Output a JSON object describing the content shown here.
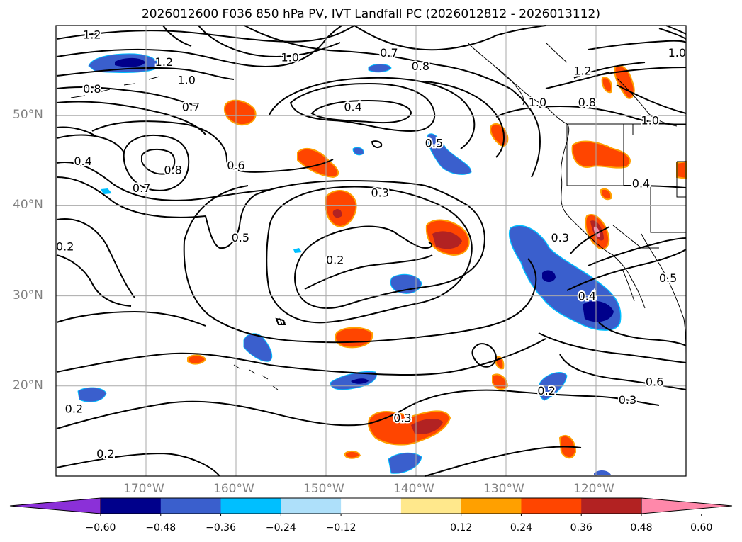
{
  "title": "2026012600 F036 850 hPa PV, IVT Landfall PC (2026012812 - 2026013112)",
  "map": {
    "lon_range": [
      -180,
      -110
    ],
    "lat_range": [
      10,
      60
    ],
    "lat_labels": [
      {
        "lat": 50,
        "label": "50°N"
      },
      {
        "lat": 40,
        "label": "40°N"
      },
      {
        "lat": 30,
        "label": "30°N"
      },
      {
        "lat": 20,
        "label": "20°N"
      }
    ],
    "lon_labels": [
      {
        "lon": -170,
        "label": "170°W"
      },
      {
        "lon": -160,
        "label": "160°W"
      },
      {
        "lon": -150,
        "label": "150°W"
      },
      {
        "lon": -140,
        "label": "140°W"
      },
      {
        "lon": -130,
        "label": "130°W"
      },
      {
        "lon": -120,
        "label": "120°W"
      }
    ],
    "grid_color": "#aaaaaa",
    "contour_labels": [
      {
        "text": "1.2",
        "lon": -176,
        "lat": 59
      },
      {
        "text": "1.2",
        "lon": -168,
        "lat": 56
      },
      {
        "text": "1.0",
        "lon": -165.5,
        "lat": 54
      },
      {
        "text": "1.0",
        "lon": -154,
        "lat": 56.5
      },
      {
        "text": "0.8",
        "lon": -176,
        "lat": 53
      },
      {
        "text": "0.7",
        "lon": -165,
        "lat": 51
      },
      {
        "text": "0.7",
        "lon": -143,
        "lat": 57
      },
      {
        "text": "0.8",
        "lon": -139.5,
        "lat": 55.5
      },
      {
        "text": "0.4",
        "lon": -147,
        "lat": 51
      },
      {
        "text": "0.5",
        "lon": -138,
        "lat": 47
      },
      {
        "text": "0.4",
        "lon": -177,
        "lat": 45
      },
      {
        "text": "0.8",
        "lon": -167,
        "lat": 44
      },
      {
        "text": "0.7",
        "lon": -170.5,
        "lat": 42
      },
      {
        "text": "0.6",
        "lon": -160,
        "lat": 44.5
      },
      {
        "text": "0.3",
        "lon": -144,
        "lat": 41.5
      },
      {
        "text": "0.5",
        "lon": -159.5,
        "lat": 36.5
      },
      {
        "text": "0.2",
        "lon": -179,
        "lat": 35.5
      },
      {
        "text": "0.2",
        "lon": -149,
        "lat": 34
      },
      {
        "text": "1.0",
        "lon": -126.5,
        "lat": 51.5
      },
      {
        "text": "0.8",
        "lon": -121,
        "lat": 51.5
      },
      {
        "text": "1.2",
        "lon": -121.5,
        "lat": 55
      },
      {
        "text": "1.0",
        "lon": -114,
        "lat": 49.5
      },
      {
        "text": "1.0",
        "lon": -111,
        "lat": 57
      },
      {
        "text": "0.4",
        "lon": -115,
        "lat": 42.5
      },
      {
        "text": "0.3",
        "lon": -124,
        "lat": 36.5
      },
      {
        "text": "0.4",
        "lon": -121,
        "lat": 30
      },
      {
        "text": "0.5",
        "lon": -112,
        "lat": 32
      },
      {
        "text": "0.6",
        "lon": -113.5,
        "lat": 20.5
      },
      {
        "text": "0.3",
        "lon": -116.5,
        "lat": 18.5
      },
      {
        "text": "0.2",
        "lon": -125.5,
        "lat": 19.5
      },
      {
        "text": "0.3",
        "lon": -141.5,
        "lat": 16.5
      },
      {
        "text": "0.2",
        "lon": -178,
        "lat": 17.5
      },
      {
        "text": "0.2",
        "lon": -174.5,
        "lat": 12.5
      }
    ],
    "shading_colors": {
      "neg_strong": "#00008b",
      "neg_mid": "#3a5fcd",
      "neg_weak": "#00bfff",
      "pos_weak": "#ff8c00",
      "pos_mid": "#ff4500",
      "pos_strong": "#b22222",
      "pos_max": "#ff88aa"
    }
  },
  "colorbar": {
    "colors": [
      "#8b30d8",
      "#00008b",
      "#3a5fcd",
      "#00bfff",
      "#aee0fa",
      "#ffffff",
      "#ffe88c",
      "#ffa000",
      "#ff4500",
      "#b22222",
      "#ff88aa"
    ],
    "tick_labels": [
      "−0.60",
      "−0.48",
      "−0.36",
      "−0.24",
      "−0.12",
      "0.12",
      "0.24",
      "0.36",
      "0.48",
      "0.60"
    ]
  }
}
